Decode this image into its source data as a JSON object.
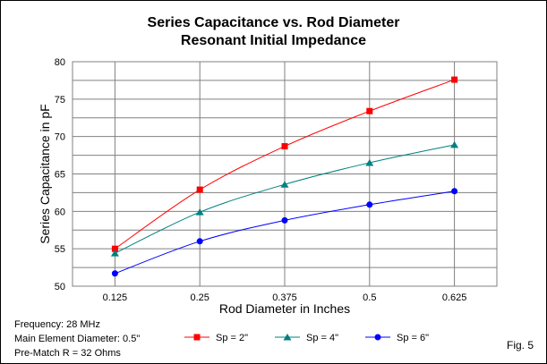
{
  "chart_data": {
    "type": "line",
    "title": "Series Capacitance vs. Rod Diameter",
    "subtitle": "Resonant Initial Impedance",
    "xlabel": "Rod Diameter in Inches",
    "ylabel": "Series Capacitance in pF",
    "categories": [
      "0.125",
      "0.25",
      "0.375",
      "0.5",
      "0.625"
    ],
    "ylim": [
      50,
      80
    ],
    "yticks": [
      "50",
      "55",
      "60",
      "65",
      "70",
      "75",
      "80"
    ],
    "grid": true,
    "legend_position": "bottom",
    "series": [
      {
        "name": "Sp = 2\"",
        "color": "#ff0000",
        "marker": "square",
        "values": [
          55.0,
          62.9,
          68.7,
          73.4,
          77.6
        ]
      },
      {
        "name": "Sp = 4\"",
        "color": "#008080",
        "marker": "triangle",
        "values": [
          54.4,
          59.9,
          63.6,
          66.5,
          68.9
        ]
      },
      {
        "name": "Sp = 6\"",
        "color": "#0000ff",
        "marker": "circle",
        "values": [
          51.7,
          56.0,
          58.8,
          60.9,
          62.7
        ]
      }
    ]
  },
  "notes": [
    "Frequency: 28 MHz",
    "Main Element Diameter: 0.5\"",
    "Pre-Match R = 32 Ohms"
  ],
  "fig_label": "Fig. 5"
}
